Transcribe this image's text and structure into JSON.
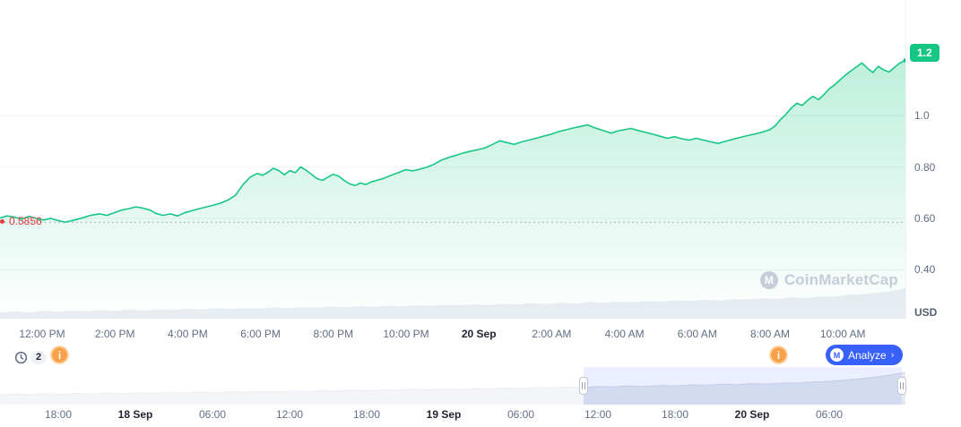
{
  "colors": {
    "green": "#16c784",
    "blue": "#3861fb",
    "red": "#ea3943",
    "axis_text": "#616e85",
    "dark_text": "#222531",
    "grid": "#eff2f5",
    "volume_gray": "#e9edf3",
    "navigator_gray": "#e5e9f0",
    "watermark_gray": "#c6cdd9",
    "info_orange": "#f7a14a"
  },
  "watermark_text": "CoinMarketCap",
  "toolbar": {
    "history_count": "2",
    "info_glyph": "i",
    "analyze_label": "Analyze",
    "analyze_chevron": "›"
  },
  "chart_data": {
    "type": "line",
    "title": "",
    "ylim": [
      0.21,
      1.45
    ],
    "unit_label": "USD",
    "yticks": [
      {
        "value": 0.4,
        "label": "0.40"
      },
      {
        "value": 0.6,
        "label": "0.60"
      },
      {
        "value": 0.8,
        "label": "0.80"
      },
      {
        "value": 1.0,
        "label": "1.0"
      }
    ],
    "current_value": 1.24,
    "current_label": "1.2",
    "low_marker": 0.5856,
    "low_label": "0.5856",
    "x_ticks": [
      {
        "label": "12:00 PM",
        "emph": false
      },
      {
        "label": "2:00 PM",
        "emph": false
      },
      {
        "label": "4:00 PM",
        "emph": false
      },
      {
        "label": "6:00 PM",
        "emph": false
      },
      {
        "label": "8:00 PM",
        "emph": false
      },
      {
        "label": "10:00 PM",
        "emph": false
      },
      {
        "label": "20 Sep",
        "emph": true
      },
      {
        "label": "2:00 AM",
        "emph": false
      },
      {
        "label": "4:00 AM",
        "emph": false
      },
      {
        "label": "6:00 AM",
        "emph": false
      },
      {
        "label": "8:00 AM",
        "emph": false
      },
      {
        "label": "10:00 AM",
        "emph": false
      }
    ],
    "series": [
      {
        "name": "price",
        "color": "#16c784",
        "points": [
          [
            0.0,
            0.602
          ],
          [
            0.008,
            0.61
          ],
          [
            0.016,
            0.605
          ],
          [
            0.024,
            0.598
          ],
          [
            0.032,
            0.608
          ],
          [
            0.04,
            0.6
          ],
          [
            0.048,
            0.594
          ],
          [
            0.056,
            0.6
          ],
          [
            0.064,
            0.592
          ],
          [
            0.072,
            0.586
          ],
          [
            0.08,
            0.592
          ],
          [
            0.09,
            0.601
          ],
          [
            0.1,
            0.612
          ],
          [
            0.11,
            0.618
          ],
          [
            0.118,
            0.612
          ],
          [
            0.126,
            0.622
          ],
          [
            0.134,
            0.632
          ],
          [
            0.142,
            0.638
          ],
          [
            0.15,
            0.645
          ],
          [
            0.158,
            0.64
          ],
          [
            0.166,
            0.632
          ],
          [
            0.172,
            0.62
          ],
          [
            0.18,
            0.612
          ],
          [
            0.188,
            0.618
          ],
          [
            0.196,
            0.61
          ],
          [
            0.204,
            0.622
          ],
          [
            0.212,
            0.63
          ],
          [
            0.22,
            0.638
          ],
          [
            0.228,
            0.645
          ],
          [
            0.236,
            0.652
          ],
          [
            0.244,
            0.66
          ],
          [
            0.252,
            0.672
          ],
          [
            0.26,
            0.69
          ],
          [
            0.268,
            0.73
          ],
          [
            0.276,
            0.76
          ],
          [
            0.284,
            0.775
          ],
          [
            0.29,
            0.768
          ],
          [
            0.296,
            0.78
          ],
          [
            0.302,
            0.795
          ],
          [
            0.308,
            0.786
          ],
          [
            0.314,
            0.77
          ],
          [
            0.32,
            0.786
          ],
          [
            0.326,
            0.778
          ],
          [
            0.332,
            0.8
          ],
          [
            0.338,
            0.788
          ],
          [
            0.344,
            0.772
          ],
          [
            0.35,
            0.755
          ],
          [
            0.356,
            0.748
          ],
          [
            0.362,
            0.76
          ],
          [
            0.368,
            0.772
          ],
          [
            0.374,
            0.765
          ],
          [
            0.38,
            0.748
          ],
          [
            0.386,
            0.735
          ],
          [
            0.392,
            0.728
          ],
          [
            0.398,
            0.738
          ],
          [
            0.404,
            0.732
          ],
          [
            0.41,
            0.742
          ],
          [
            0.416,
            0.748
          ],
          [
            0.424,
            0.756
          ],
          [
            0.432,
            0.768
          ],
          [
            0.44,
            0.778
          ],
          [
            0.448,
            0.79
          ],
          [
            0.456,
            0.785
          ],
          [
            0.464,
            0.792
          ],
          [
            0.472,
            0.8
          ],
          [
            0.48,
            0.812
          ],
          [
            0.488,
            0.828
          ],
          [
            0.496,
            0.838
          ],
          [
            0.504,
            0.846
          ],
          [
            0.512,
            0.855
          ],
          [
            0.52,
            0.862
          ],
          [
            0.528,
            0.868
          ],
          [
            0.536,
            0.875
          ],
          [
            0.544,
            0.888
          ],
          [
            0.552,
            0.902
          ],
          [
            0.56,
            0.895
          ],
          [
            0.568,
            0.888
          ],
          [
            0.576,
            0.898
          ],
          [
            0.584,
            0.905
          ],
          [
            0.592,
            0.912
          ],
          [
            0.6,
            0.92
          ],
          [
            0.609,
            0.928
          ],
          [
            0.617,
            0.938
          ],
          [
            0.625,
            0.945
          ],
          [
            0.633,
            0.952
          ],
          [
            0.641,
            0.958
          ],
          [
            0.649,
            0.964
          ],
          [
            0.655,
            0.955
          ],
          [
            0.661,
            0.948
          ],
          [
            0.668,
            0.94
          ],
          [
            0.675,
            0.932
          ],
          [
            0.682,
            0.94
          ],
          [
            0.689,
            0.945
          ],
          [
            0.697,
            0.95
          ],
          [
            0.705,
            0.942
          ],
          [
            0.713,
            0.935
          ],
          [
            0.721,
            0.928
          ],
          [
            0.729,
            0.92
          ],
          [
            0.737,
            0.912
          ],
          [
            0.745,
            0.918
          ],
          [
            0.753,
            0.91
          ],
          [
            0.761,
            0.905
          ],
          [
            0.769,
            0.912
          ],
          [
            0.777,
            0.905
          ],
          [
            0.785,
            0.898
          ],
          [
            0.793,
            0.892
          ],
          [
            0.801,
            0.9
          ],
          [
            0.809,
            0.908
          ],
          [
            0.817,
            0.915
          ],
          [
            0.825,
            0.922
          ],
          [
            0.833,
            0.928
          ],
          [
            0.841,
            0.935
          ],
          [
            0.85,
            0.945
          ],
          [
            0.856,
            0.96
          ],
          [
            0.862,
            0.985
          ],
          [
            0.868,
            1.005
          ],
          [
            0.874,
            1.03
          ],
          [
            0.88,
            1.048
          ],
          [
            0.886,
            1.04
          ],
          [
            0.892,
            1.06
          ],
          [
            0.898,
            1.075
          ],
          [
            0.904,
            1.062
          ],
          [
            0.91,
            1.082
          ],
          [
            0.916,
            1.105
          ],
          [
            0.922,
            1.12
          ],
          [
            0.928,
            1.14
          ],
          [
            0.934,
            1.158
          ],
          [
            0.94,
            1.175
          ],
          [
            0.946,
            1.19
          ],
          [
            0.952,
            1.205
          ],
          [
            0.958,
            1.185
          ],
          [
            0.964,
            1.168
          ],
          [
            0.97,
            1.192
          ],
          [
            0.976,
            1.178
          ],
          [
            0.982,
            1.17
          ],
          [
            0.988,
            1.188
          ],
          [
            0.994,
            1.205
          ],
          [
            1.0,
            1.215
          ]
        ]
      }
    ],
    "volume": [
      0.2,
      0.24,
      0.21,
      0.26,
      0.23,
      0.27,
      0.24,
      0.28,
      0.26,
      0.3,
      0.27,
      0.31,
      0.29,
      0.33,
      0.3,
      0.34,
      0.32,
      0.35,
      0.33,
      0.37,
      0.34,
      0.38,
      0.36,
      0.4,
      0.37,
      0.41,
      0.39,
      0.43,
      0.4,
      0.44,
      0.42,
      0.46,
      0.44,
      0.47,
      0.45,
      0.49,
      0.47,
      0.51,
      0.48,
      0.53,
      0.5,
      0.55,
      0.52,
      0.56,
      0.54,
      0.58,
      0.56,
      0.6,
      0.58,
      0.62,
      0.6,
      0.64,
      0.63,
      0.67,
      0.65,
      0.7,
      0.68,
      0.73,
      0.72,
      0.78,
      0.8,
      0.85,
      0.9,
      1.0
    ],
    "navigator": {
      "values": [
        0.3,
        0.33,
        0.31,
        0.34,
        0.32,
        0.35,
        0.33,
        0.36,
        0.34,
        0.37,
        0.35,
        0.38,
        0.36,
        0.39,
        0.37,
        0.4,
        0.38,
        0.41,
        0.39,
        0.42,
        0.41,
        0.44,
        0.42,
        0.45,
        0.43,
        0.46,
        0.45,
        0.48,
        0.46,
        0.49,
        0.47,
        0.5,
        0.49,
        0.52,
        0.5,
        0.53,
        0.52,
        0.55,
        0.53,
        0.56,
        0.55,
        0.58,
        0.56,
        0.59,
        0.58,
        0.61,
        0.6,
        0.63,
        0.62,
        0.65,
        0.64,
        0.67,
        0.67,
        0.7,
        0.72,
        0.76,
        0.8,
        0.85,
        0.92,
        1.0
      ],
      "selection": {
        "start": 0.645,
        "end": 0.996
      },
      "ticks": [
        {
          "label": "18:00",
          "emph": false
        },
        {
          "label": "18 Sep",
          "emph": true
        },
        {
          "label": "06:00",
          "emph": false
        },
        {
          "label": "12:00",
          "emph": false
        },
        {
          "label": "18:00",
          "emph": false
        },
        {
          "label": "19 Sep",
          "emph": true
        },
        {
          "label": "06:00",
          "emph": false
        },
        {
          "label": "12:00",
          "emph": false
        },
        {
          "label": "18:00",
          "emph": false
        },
        {
          "label": "20 Sep",
          "emph": true
        },
        {
          "label": "06:00",
          "emph": false
        }
      ]
    }
  }
}
